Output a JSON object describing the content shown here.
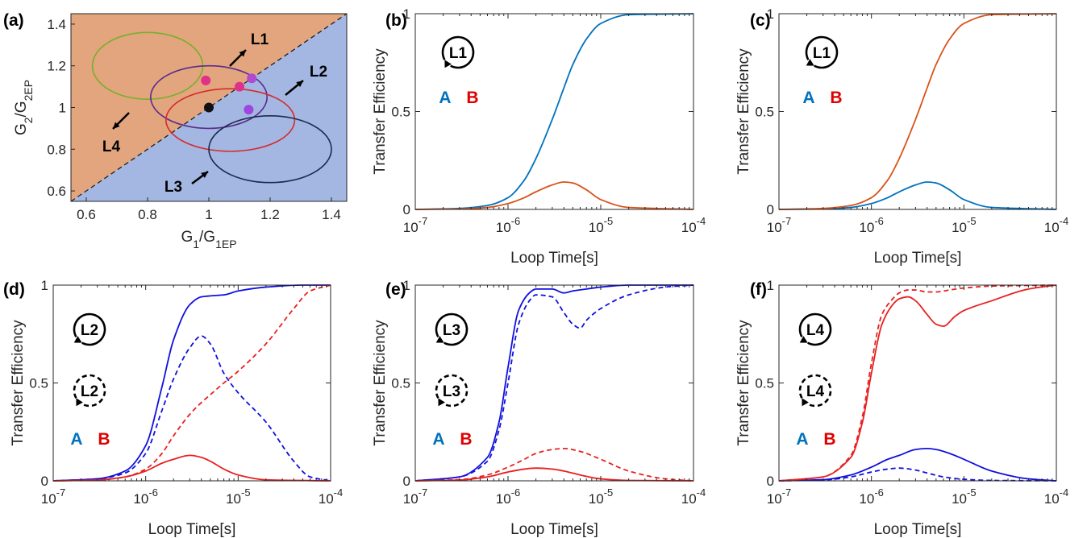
{
  "colors": {
    "region_upper": "#e2a57e",
    "region_lower": "#a3b7e2",
    "A_matlab": "#0072bd",
    "B_matlab": "#d95319",
    "A_bright": "#1010e0",
    "B_bright": "#e82020",
    "label_A": "#0072bd",
    "label_B": "#e00000"
  },
  "chart_data": [
    {
      "panel": "(a)",
      "type": "scatter",
      "xlabel": "G1/G1EP",
      "ylabel": "G2/G2EP",
      "xlim": [
        0.55,
        1.45
      ],
      "ylim": [
        0.55,
        1.45
      ],
      "xticks": [
        "0.6",
        "0.8",
        "1",
        "1.2",
        "1.4"
      ],
      "yticks": [
        "0.6",
        "0.8",
        "1",
        "1.2",
        "1.4"
      ],
      "boundary": "y = x (dashed line)",
      "ellipses": [
        {
          "name": "L1",
          "cx": 0.8,
          "cy": 1.2,
          "rx": 0.18,
          "ry": 0.16,
          "color": "#77b02a"
        },
        {
          "name": "L2 (violet)",
          "cx": 1.0,
          "cy": 1.05,
          "rx": 0.19,
          "ry": 0.15,
          "color": "#5a2c8c"
        },
        {
          "name": "L2 (red)",
          "cx": 1.07,
          "cy": 0.94,
          "rx": 0.21,
          "ry": 0.15,
          "color": "#d62a2a"
        },
        {
          "name": "L3",
          "cx": 1.2,
          "cy": 0.8,
          "rx": 0.2,
          "ry": 0.16,
          "color": "#1c2b4f"
        }
      ],
      "points": [
        {
          "x": 0.99,
          "y": 1.13,
          "color": "#e0308a"
        },
        {
          "x": 1.1,
          "y": 1.1,
          "color": "#e0308a"
        },
        {
          "x": 1.14,
          "y": 1.14,
          "color": "#b14ad0"
        },
        {
          "x": 1.13,
          "y": 0.99,
          "color": "#a046e0"
        },
        {
          "x": 1.0,
          "y": 1.0,
          "color": "#111111"
        }
      ],
      "labels": [
        "L1",
        "L2",
        "L3",
        "L4"
      ]
    },
    {
      "panel": "(b)",
      "type": "line",
      "loop_label": "L1",
      "direction": "ccw",
      "xlabel": "Loop Time[s]",
      "ylabel": "Transfer Efficiency",
      "xscale": "log",
      "xlim": [
        1e-07,
        0.0001
      ],
      "ylim": [
        0,
        1
      ],
      "series": [
        {
          "name": "A",
          "style": "solid",
          "color": "#0072bd",
          "x": [
            1e-07,
            3e-07,
            6e-07,
            1e-06,
            1.5e-06,
            2e-06,
            3e-06,
            4e-06,
            5e-06,
            7e-06,
            1e-05,
            2e-05,
            0.0001
          ],
          "values": [
            0,
            0.005,
            0.02,
            0.06,
            0.15,
            0.26,
            0.46,
            0.62,
            0.74,
            0.87,
            0.95,
            0.995,
            1.0
          ]
        },
        {
          "name": "B",
          "style": "solid",
          "color": "#d95319",
          "x": [
            1e-07,
            3e-07,
            6e-07,
            1e-06,
            1.5e-06,
            2e-06,
            3e-06,
            4e-06,
            5e-06,
            7e-06,
            1e-05,
            2e-05,
            0.0001
          ],
          "values": [
            0,
            0.002,
            0.01,
            0.03,
            0.06,
            0.09,
            0.125,
            0.14,
            0.135,
            0.1,
            0.05,
            0.01,
            0
          ]
        }
      ]
    },
    {
      "panel": "(c)",
      "type": "line",
      "loop_label": "L1",
      "direction": "cw",
      "xlabel": "Loop Time[s]",
      "ylabel": "Transfer Efficiency",
      "xscale": "log",
      "xlim": [
        1e-07,
        0.0001
      ],
      "ylim": [
        0,
        1
      ],
      "series": [
        {
          "name": "A",
          "style": "solid",
          "color": "#0072bd",
          "x": [
            1e-07,
            3e-07,
            6e-07,
            1e-06,
            1.5e-06,
            2e-06,
            3e-06,
            4e-06,
            5e-06,
            7e-06,
            1e-05,
            2e-05,
            0.0001
          ],
          "values": [
            0,
            0.002,
            0.01,
            0.03,
            0.06,
            0.09,
            0.125,
            0.14,
            0.135,
            0.1,
            0.05,
            0.01,
            0
          ]
        },
        {
          "name": "B",
          "style": "solid",
          "color": "#d95319",
          "x": [
            1e-07,
            3e-07,
            6e-07,
            1e-06,
            1.5e-06,
            2e-06,
            3e-06,
            4e-06,
            5e-06,
            7e-06,
            1e-05,
            2e-05,
            0.0001
          ],
          "values": [
            0,
            0.005,
            0.02,
            0.06,
            0.15,
            0.26,
            0.46,
            0.62,
            0.74,
            0.87,
            0.95,
            0.995,
            1.0
          ]
        }
      ]
    },
    {
      "panel": "(d)",
      "type": "line",
      "loop_label": "L2",
      "direction": "cw (solid), ccw (dashed)",
      "xlabel": "Loop Time[s]",
      "ylabel": "Transfer Efficiency",
      "xscale": "log",
      "xlim": [
        1e-07,
        0.0001
      ],
      "ylim": [
        0,
        1
      ],
      "series": [
        {
          "name": "A",
          "style": "solid",
          "color": "#1010e0",
          "x": [
            1e-07,
            3e-07,
            6e-07,
            1e-06,
            1.5e-06,
            2e-06,
            3e-06,
            4e-06,
            5e-06,
            7e-06,
            1e-05,
            2e-05,
            5e-05,
            0.0001
          ],
          "values": [
            0,
            0.01,
            0.05,
            0.18,
            0.48,
            0.72,
            0.9,
            0.94,
            0.945,
            0.95,
            0.97,
            0.99,
            1.0,
            1.0
          ]
        },
        {
          "name": "A (dashed)",
          "style": "dashed",
          "color": "#1010e0",
          "x": [
            1e-07,
            3e-07,
            6e-07,
            1e-06,
            1.5e-06,
            2e-06,
            3e-06,
            4e-06,
            5e-06,
            7e-06,
            1e-05,
            2e-05,
            4e-05,
            6e-05,
            0.0001
          ],
          "values": [
            0,
            0.01,
            0.04,
            0.14,
            0.36,
            0.52,
            0.68,
            0.74,
            0.7,
            0.55,
            0.45,
            0.3,
            0.1,
            0.02,
            0
          ]
        },
        {
          "name": "B",
          "style": "solid",
          "color": "#e82020",
          "x": [
            1e-07,
            3e-07,
            6e-07,
            1e-06,
            1.5e-06,
            2e-06,
            3e-06,
            4e-06,
            5e-06,
            7e-06,
            1e-05,
            2e-05,
            0.0001
          ],
          "values": [
            0,
            0.004,
            0.02,
            0.05,
            0.09,
            0.11,
            0.13,
            0.12,
            0.1,
            0.06,
            0.03,
            0.005,
            0
          ]
        },
        {
          "name": "B (dashed)",
          "style": "dashed",
          "color": "#e82020",
          "x": [
            1e-07,
            3e-07,
            6e-07,
            1e-06,
            1.5e-06,
            2e-06,
            3e-06,
            4e-06,
            5e-06,
            7e-06,
            1e-05,
            2e-05,
            4e-05,
            6e-05,
            0.0001
          ],
          "values": [
            0,
            0.004,
            0.02,
            0.06,
            0.14,
            0.23,
            0.34,
            0.4,
            0.44,
            0.5,
            0.56,
            0.7,
            0.88,
            0.97,
            1.0
          ]
        }
      ]
    },
    {
      "panel": "(e)",
      "type": "line",
      "loop_label": "L3",
      "direction": "cw (solid), ccw (dashed)",
      "xlabel": "Loop Time[s]",
      "ylabel": "Transfer Efficiency",
      "xscale": "log",
      "xlim": [
        1e-07,
        0.0001
      ],
      "ylim": [
        0,
        1
      ],
      "series": [
        {
          "name": "A",
          "style": "solid",
          "color": "#1010e0",
          "x": [
            1e-07,
            3e-07,
            6e-07,
            8e-07,
            1e-06,
            1.3e-06,
            1.7e-06,
            2e-06,
            3e-06,
            4e-06,
            5e-06,
            7e-06,
            1e-05,
            2e-05,
            0.0001
          ],
          "values": [
            0,
            0.02,
            0.12,
            0.3,
            0.58,
            0.87,
            0.96,
            0.98,
            0.98,
            0.96,
            0.97,
            0.98,
            0.99,
            1.0,
            1.0
          ]
        },
        {
          "name": "A (dashed)",
          "style": "dashed",
          "color": "#1010e0",
          "x": [
            1e-07,
            3e-07,
            6e-07,
            8e-07,
            1e-06,
            1.3e-06,
            1.7e-06,
            2e-06,
            3e-06,
            4e-06,
            5e-06,
            6e-06,
            7e-06,
            1e-05,
            2e-05,
            5e-05,
            0.0001
          ],
          "values": [
            0,
            0.02,
            0.1,
            0.26,
            0.5,
            0.8,
            0.92,
            0.95,
            0.94,
            0.86,
            0.8,
            0.78,
            0.82,
            0.88,
            0.95,
            0.99,
            1.0
          ]
        },
        {
          "name": "B",
          "style": "solid",
          "color": "#e82020",
          "x": [
            1e-07,
            3e-07,
            6e-07,
            1e-06,
            1.5e-06,
            2e-06,
            3e-06,
            4e-06,
            6e-06,
            1e-05,
            2e-05,
            0.0001
          ],
          "values": [
            0,
            0.004,
            0.02,
            0.045,
            0.06,
            0.065,
            0.06,
            0.05,
            0.03,
            0.01,
            0.002,
            0
          ]
        },
        {
          "name": "B (dashed)",
          "style": "dashed",
          "color": "#e82020",
          "x": [
            1e-07,
            3e-07,
            6e-07,
            1e-06,
            1.5e-06,
            2e-06,
            3e-06,
            4e-06,
            6e-06,
            1e-05,
            2e-05,
            5e-05,
            0.0001
          ],
          "values": [
            0,
            0.006,
            0.03,
            0.07,
            0.11,
            0.14,
            0.16,
            0.165,
            0.15,
            0.11,
            0.05,
            0.01,
            0
          ]
        }
      ]
    },
    {
      "panel": "(f)",
      "type": "line",
      "loop_label": "L4",
      "direction": "cw (solid), ccw (dashed)",
      "xlabel": "Loop Time[s]",
      "ylabel": "Transfer Efficiency",
      "xscale": "log",
      "xlim": [
        1e-07,
        0.0001
      ],
      "ylim": [
        0,
        1
      ],
      "series": [
        {
          "name": "A",
          "style": "solid",
          "color": "#1010e0",
          "x": [
            1e-07,
            3e-07,
            6e-07,
            1e-06,
            1.5e-06,
            2e-06,
            3e-06,
            4e-06,
            5e-06,
            7e-06,
            1e-05,
            2e-05,
            5e-05,
            0.0001
          ],
          "values": [
            0,
            0.006,
            0.03,
            0.07,
            0.11,
            0.13,
            0.16,
            0.165,
            0.16,
            0.14,
            0.11,
            0.05,
            0.01,
            0
          ]
        },
        {
          "name": "A (dashed)",
          "style": "dashed",
          "color": "#1010e0",
          "x": [
            1e-07,
            3e-07,
            6e-07,
            1e-06,
            1.5e-06,
            2e-06,
            3e-06,
            4e-06,
            6e-06,
            1e-05,
            2e-05,
            0.0001
          ],
          "values": [
            0,
            0.004,
            0.02,
            0.045,
            0.06,
            0.065,
            0.055,
            0.04,
            0.02,
            0.008,
            0.002,
            0
          ]
        },
        {
          "name": "B",
          "style": "solid",
          "color": "#e82020",
          "x": [
            1e-07,
            3e-07,
            6e-07,
            8e-07,
            1e-06,
            1.3e-06,
            1.7e-06,
            2e-06,
            2.5e-06,
            3e-06,
            4e-06,
            5e-06,
            6e-06,
            8e-06,
            1e-05,
            2e-05,
            5e-05,
            0.0001
          ],
          "values": [
            0,
            0.02,
            0.12,
            0.3,
            0.55,
            0.8,
            0.9,
            0.93,
            0.94,
            0.92,
            0.85,
            0.8,
            0.79,
            0.84,
            0.87,
            0.92,
            0.98,
            1.0
          ]
        },
        {
          "name": "B (dashed)",
          "style": "dashed",
          "color": "#e82020",
          "x": [
            1e-07,
            3e-07,
            6e-07,
            8e-07,
            1e-06,
            1.3e-06,
            1.7e-06,
            2e-06,
            2.5e-06,
            3e-06,
            4e-06,
            5e-06,
            7e-06,
            1e-05,
            2e-05,
            0.0001
          ],
          "values": [
            0,
            0.02,
            0.13,
            0.33,
            0.6,
            0.85,
            0.93,
            0.96,
            0.975,
            0.975,
            0.965,
            0.965,
            0.975,
            0.985,
            0.995,
            1.0
          ]
        }
      ]
    }
  ],
  "text": {
    "ab_A": "A",
    "ab_B": "B"
  }
}
